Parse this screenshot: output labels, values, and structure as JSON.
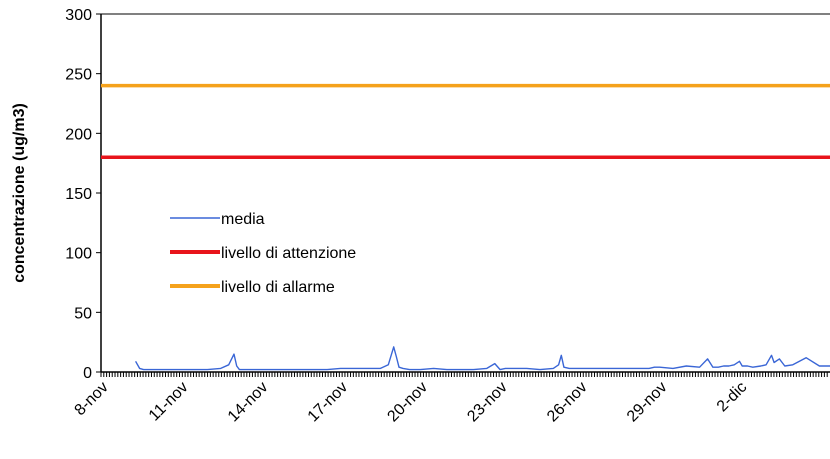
{
  "chart_data": {
    "type": "line",
    "title": "",
    "xlabel": "",
    "ylabel": "concentrazione (ug/m3)",
    "ylim": [
      0,
      300
    ],
    "yticks": [
      0,
      50,
      100,
      150,
      200,
      250,
      300
    ],
    "x_tick_labels": [
      "8-nov",
      "11-nov",
      "14-nov",
      "17-nov",
      "20-nov",
      "23-nov",
      "26-nov",
      "29-nov",
      "2-dic"
    ],
    "x_range_days": [
      0,
      27.4
    ],
    "legend_position": "center-left",
    "grid": false,
    "series": [
      {
        "name": "media",
        "color": "#3a66d6",
        "x": [
          1.3,
          1.45,
          1.6,
          2.0,
          2.5,
          3.0,
          3.5,
          4.0,
          4.5,
          4.8,
          5.0,
          5.1,
          5.2,
          5.3,
          5.6,
          6.0,
          6.5,
          7.0,
          7.5,
          8.0,
          8.5,
          9.0,
          9.5,
          10.0,
          10.5,
          10.8,
          11.0,
          11.1,
          11.2,
          11.35,
          11.6,
          12.0,
          12.5,
          13.0,
          13.5,
          14.0,
          14.5,
          14.8,
          15.0,
          15.2,
          15.5,
          16.0,
          16.5,
          17.0,
          17.2,
          17.3,
          17.4,
          17.6,
          18.0,
          18.5,
          19.0,
          19.5,
          20.0,
          20.3,
          20.5,
          20.6,
          20.8,
          21.0,
          21.5,
          22.0,
          22.5,
          22.8,
          23.0,
          23.2,
          23.4,
          23.6,
          23.8,
          24.0,
          24.1,
          24.3,
          24.5,
          24.8,
          25.0,
          25.2,
          25.3,
          25.5,
          25.7,
          26.0,
          26.5,
          27.0,
          27.4
        ],
        "values": [
          9,
          3,
          2,
          2,
          2,
          2,
          2,
          2,
          3,
          6,
          15,
          5,
          2,
          2,
          2,
          2,
          2,
          2,
          2,
          2,
          2,
          3,
          3,
          3,
          3,
          6,
          21,
          13,
          4,
          3,
          2,
          2,
          3,
          2,
          2,
          2,
          3,
          7,
          2,
          3,
          3,
          3,
          2,
          3,
          6,
          14,
          4,
          3,
          3,
          3,
          3,
          3,
          3,
          3,
          3,
          3,
          4,
          4,
          3,
          5,
          4,
          11,
          4,
          4,
          5,
          5,
          6,
          9,
          5,
          5,
          4,
          5,
          6,
          14,
          8,
          11,
          5,
          6,
          12,
          5,
          5
        ]
      },
      {
        "name": "livello di attenzione",
        "color": "#e8141b",
        "x": [
          0,
          27.4
        ],
        "values": [
          180,
          180
        ]
      },
      {
        "name": "livello di allarme",
        "color": "#f5a21c",
        "x": [
          0,
          27.4
        ],
        "values": [
          240,
          240
        ]
      }
    ]
  }
}
